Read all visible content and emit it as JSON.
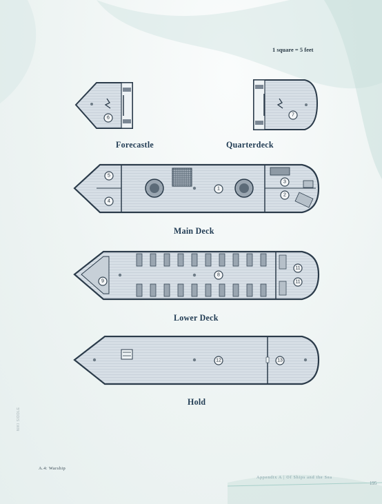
{
  "scale_note": "1 square = 5 feet",
  "decks": {
    "forecastle": {
      "title": "Forecastle",
      "areas": [
        "6"
      ]
    },
    "quarterdeck": {
      "title": "Quarterdeck",
      "areas": [
        "7"
      ]
    },
    "main_deck": {
      "title": "Main Deck",
      "areas": [
        "5",
        "4",
        "1",
        "3",
        "2"
      ]
    },
    "lower_deck": {
      "title": "Lower Deck",
      "areas": [
        "9",
        "8",
        "11",
        "11"
      ]
    },
    "hold": {
      "title": "Hold",
      "areas": [
        "12",
        "13"
      ]
    }
  },
  "footer": {
    "left": "A.4: Warship",
    "right": "Appendix A | Of Ships and the Sea",
    "page_number": "195",
    "side_text": "NIKI SIDDLE"
  },
  "colors": {
    "deck_fill": "#d7dfe6",
    "outline": "#2b3b4a",
    "title": "#1f3a52",
    "badge": "#f4f6f7"
  }
}
